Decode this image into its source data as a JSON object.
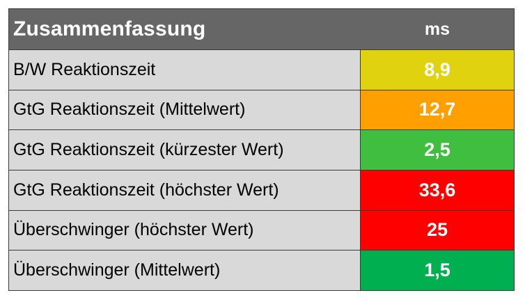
{
  "table": {
    "header": {
      "label": "Zusammenfassung",
      "unit": "ms"
    },
    "rows": [
      {
        "label": "B/W Reaktionszeit",
        "value": "8,9",
        "color": "#e0d20f"
      },
      {
        "label": "GtG Reaktionszeit (Mittelwert)",
        "value": "12,7",
        "color": "#ff9f00"
      },
      {
        "label": "GtG Reaktionszeit (kürzester Wert)",
        "value": "2,5",
        "color": "#3fbe3f"
      },
      {
        "label": "GtG Reaktionszeit (höchster Wert)",
        "value": "33,6",
        "color": "#ff0000"
      },
      {
        "label": "Überschwinger (höchster Wert)",
        "value": "25",
        "color": "#ff0000"
      },
      {
        "label": "Überschwinger (Mittelwert)",
        "value": "1,5",
        "color": "#00b050"
      }
    ]
  }
}
